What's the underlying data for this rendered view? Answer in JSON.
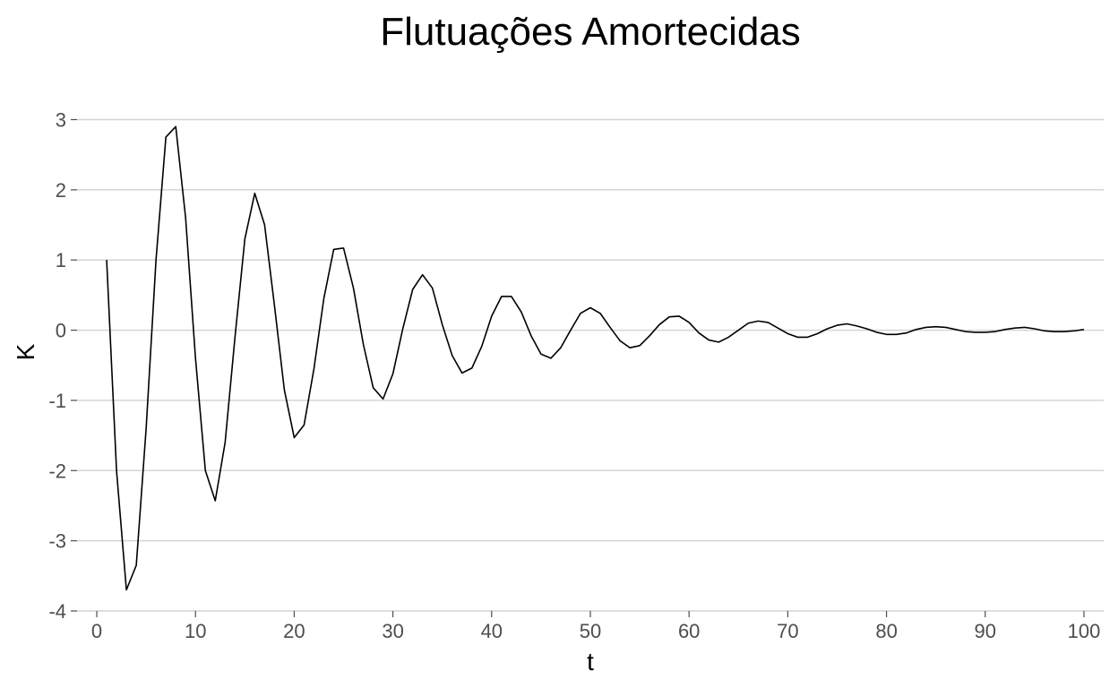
{
  "chart_data": {
    "type": "line",
    "title": "Flutuações Amortecidas",
    "xlabel": "t",
    "ylabel": "K",
    "xlim": [
      -2,
      102
    ],
    "ylim": [
      -4,
      3.3
    ],
    "x_ticks": [
      0,
      10,
      20,
      30,
      40,
      50,
      60,
      70,
      80,
      90,
      100
    ],
    "y_ticks": [
      -4,
      -3,
      -2,
      -1,
      0,
      1,
      2,
      3
    ],
    "grid": "horizontal",
    "legend": "none",
    "series": [
      {
        "name": "K",
        "x": [
          1,
          2,
          3,
          4,
          5,
          6,
          7,
          8,
          9,
          10,
          11,
          12,
          13,
          14,
          15,
          16,
          17,
          18,
          19,
          20,
          21,
          22,
          23,
          24,
          25,
          26,
          27,
          28,
          29,
          30,
          31,
          32,
          33,
          34,
          35,
          36,
          37,
          38,
          39,
          40,
          41,
          42,
          43,
          44,
          45,
          46,
          47,
          48,
          49,
          50,
          51,
          52,
          53,
          54,
          55,
          56,
          57,
          58,
          59,
          60,
          61,
          62,
          63,
          64,
          65,
          66,
          67,
          68,
          69,
          70,
          71,
          72,
          73,
          74,
          75,
          76,
          77,
          78,
          79,
          80,
          81,
          82,
          83,
          84,
          85,
          86,
          87,
          88,
          89,
          90,
          91,
          92,
          93,
          94,
          95,
          96,
          97,
          98,
          99,
          100
        ],
        "values": [
          1.0,
          -2.0,
          -3.7,
          -3.35,
          -1.4,
          1.0,
          2.75,
          2.9,
          1.6,
          -0.4,
          -2.0,
          -2.43,
          -1.6,
          -0.1,
          1.3,
          1.95,
          1.5,
          0.35,
          -0.85,
          -1.53,
          -1.35,
          -0.55,
          0.45,
          1.15,
          1.17,
          0.6,
          -0.2,
          -0.82,
          -0.98,
          -0.62,
          0.02,
          0.58,
          0.79,
          0.6,
          0.08,
          -0.36,
          -0.61,
          -0.54,
          -0.23,
          0.2,
          0.48,
          0.48,
          0.26,
          -0.08,
          -0.34,
          -0.4,
          -0.25,
          0.0,
          0.24,
          0.32,
          0.24,
          0.04,
          -0.15,
          -0.25,
          -0.22,
          -0.08,
          0.08,
          0.19,
          0.2,
          0.11,
          -0.04,
          -0.14,
          -0.17,
          -0.1,
          0.0,
          0.1,
          0.13,
          0.11,
          0.03,
          -0.05,
          -0.1,
          -0.1,
          -0.05,
          0.02,
          0.07,
          0.09,
          0.06,
          0.02,
          -0.03,
          -0.06,
          -0.06,
          -0.04,
          0.01,
          0.04,
          0.05,
          0.04,
          0.01,
          -0.02,
          -0.03,
          -0.03,
          -0.02,
          0.01,
          0.03,
          0.04,
          0.02,
          -0.01,
          -0.02,
          -0.02,
          -0.01,
          0.01
        ]
      }
    ]
  }
}
